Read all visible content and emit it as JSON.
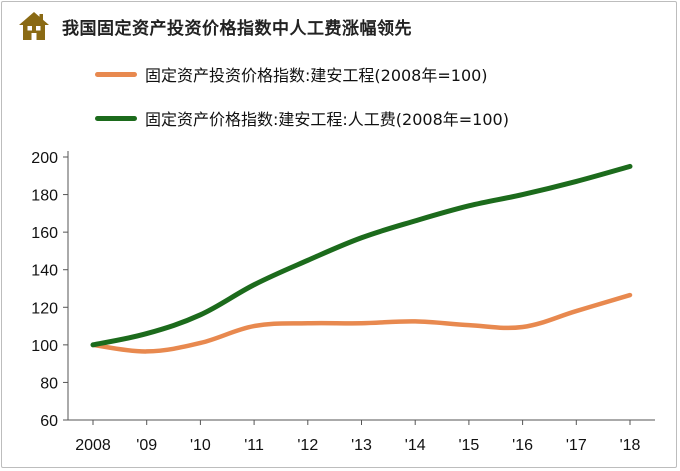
{
  "title": "我国固定资产投资价格指数中人工费涨幅领先",
  "icon": "house-icon",
  "colors": {
    "orange": "#e8894f",
    "green": "#1c6b1c",
    "icon": "#8a6a14"
  },
  "chart_data": {
    "type": "line",
    "title": "我国固定资产投资价格指数中人工费涨幅领先",
    "xlabel": "",
    "ylabel": "",
    "categories": [
      "2008",
      "'09",
      "'10",
      "'11",
      "'12",
      "'13",
      "'14",
      "'15",
      "'16",
      "'17",
      "'18"
    ],
    "ylim": [
      60,
      200
    ],
    "yticks": [
      60,
      80,
      100,
      120,
      140,
      160,
      180,
      200
    ],
    "grid": false,
    "legend": "top-left",
    "series": [
      {
        "name": "固定资产投资价格指数:建安工程(2008年=100)",
        "color": "#e8894f",
        "values": [
          100,
          96.5,
          101,
          110,
          111.5,
          111.5,
          112.5,
          110.5,
          109.5,
          118,
          126.5
        ]
      },
      {
        "name": "固定资产价格指数:建安工程:人工费(2008年=100)",
        "color": "#1c6b1c",
        "values": [
          100,
          106,
          116,
          132,
          145,
          157,
          166,
          174,
          180,
          187,
          195
        ]
      }
    ]
  }
}
